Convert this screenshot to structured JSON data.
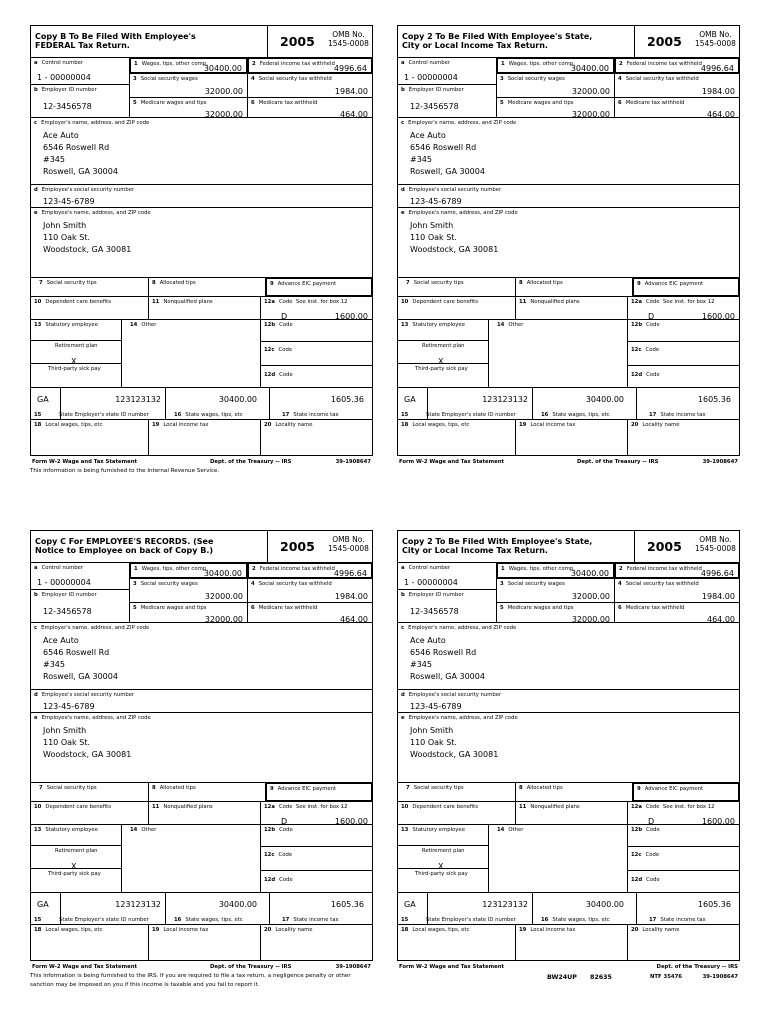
{
  "labels": {
    "a": "Control number",
    "b": "Employer ID number",
    "box1": "Wages, tips, other comp.",
    "box2": "Federal income tax withheld",
    "box3": "Social security wages",
    "box4": "Social security tax withheld",
    "box5": "Medicare wages and tips",
    "box6": "Medicare tax withheld",
    "c": "Employer's name, address, and ZIP code",
    "d": "Employee's social security number",
    "e": "Employee's name, address, and ZIP code",
    "box7": "Social security tips",
    "box8": "Allocated tips",
    "box9": "Advance EIC payment",
    "box10": "Dependent care benefits",
    "box11": "Nonqualified plans",
    "box12a": "Code",
    "box12a_note": "See inst. for box 12",
    "box12b": "Code",
    "box12c": "Code",
    "box12d": "Code",
    "box13": "Statutory employee",
    "retirement": "Retirement plan",
    "thirdparty": "Third-party sick pay",
    "box14": "Other",
    "box15": "State Employer's state ID number",
    "box16": "State wages, tips, etc",
    "box17": "State income tax",
    "box18": "Local wages, tips, etc",
    "box19": "Local income tax",
    "box20": "Locality name",
    "omb1": "OMB No.",
    "omb2": "1545-0008"
  },
  "w2": {
    "year": "2005",
    "control_number": "1 - 00000004",
    "employer_id": "12-3456578",
    "wages": "30400.00",
    "federal_tax": "4996.64",
    "ss_wages": "32000.00",
    "ss_tax": "1984.00",
    "medicare_wages": "32000.00",
    "medicare_tax": "464.00",
    "employer": [
      "Ace Auto",
      "6546 Roswell Rd",
      "#345",
      "Roswell, GA 30004"
    ],
    "ssn": "123-45-6789",
    "employee": [
      "John Smith",
      "110 Oak St.",
      "Woodstock, GA 30081"
    ],
    "box12a_code": "D",
    "box12a_amount": "1600.00",
    "retirement_mark": "X",
    "state": "GA",
    "state_id": "123123132",
    "state_wages": "30400.00",
    "state_tax": "1605.36"
  },
  "footer": {
    "form_name": "Form W-2 Wage and Tax Statement",
    "dept": "Dept. of the Treasury -- IRS",
    "ein": "39-1908647",
    "code1": "BW24UP",
    "code2": "82635",
    "code3": "NTF 35476"
  },
  "forms": [
    {
      "title1": "Copy B To Be Filed With Employee's",
      "title2": "FEDERAL Tax Return.",
      "note": "This information is being furnished to the Internal Revenue Service."
    },
    {
      "title1": "Copy 2 To Be Filed With Employee's State,",
      "title2": "City or Local Income Tax Return.",
      "note": ""
    },
    {
      "title1": "Copy C For EMPLOYEE'S RECORDS. (See",
      "title2": "Notice to Employee on back of Copy B.)",
      "note": "This information is being furnished to the IRS.  If you are required to file a tax return, a negligence penalty or other sanction may be imposed on you if this income is taxable and you fail to report it."
    },
    {
      "title1": "Copy 2 To Be Filed With Employee's State,",
      "title2": "City or Local Income Tax Return.",
      "note": ""
    }
  ]
}
